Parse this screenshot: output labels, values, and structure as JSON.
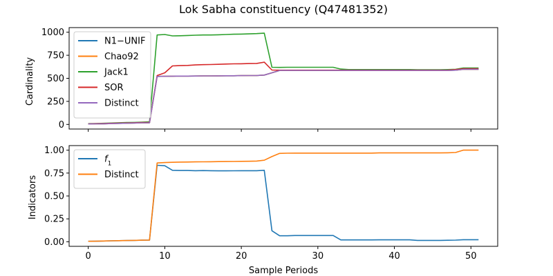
{
  "chart_data": [
    {
      "type": "line",
      "title": "Lok Sabha constituency (Q47481352)",
      "xlabel": "",
      "ylabel": "Cardinality",
      "xlim": [
        -2.5,
        53.5
      ],
      "ylim": [
        -50,
        1050
      ],
      "xticks": [
        0,
        10,
        20,
        30,
        40,
        50
      ],
      "yticks": [
        0,
        250,
        500,
        750,
        1000
      ],
      "ytick_labels": [
        "0",
        "250",
        "500",
        "750",
        "1000"
      ],
      "show_xtick_labels": false,
      "legend": "top-left",
      "series": [
        {
          "name": "N1−UNIF",
          "color": "#1f77b4",
          "x": [
            0,
            1,
            2,
            3,
            4,
            5,
            6,
            7,
            8,
            9,
            10,
            11,
            12,
            13,
            14,
            15,
            16,
            17,
            18,
            19,
            20,
            21,
            22,
            23,
            24,
            25,
            26,
            27,
            28,
            29,
            30,
            31,
            32,
            33,
            34,
            35,
            36,
            37,
            38,
            39,
            40,
            41,
            42,
            43,
            44,
            45,
            46,
            47,
            48,
            49,
            50,
            51
          ],
          "y": [
            5,
            6,
            7,
            9,
            11,
            13,
            15,
            17,
            18,
            520,
            522,
            523,
            524,
            524,
            525,
            526,
            526,
            527,
            528,
            528,
            529,
            530,
            531,
            535,
            560,
            585,
            585,
            585,
            585,
            585,
            585,
            585,
            585,
            585,
            585,
            585,
            585,
            585,
            585,
            585,
            585,
            585,
            585,
            585,
            585,
            585,
            585,
            585,
            588,
            598,
            598,
            598
          ]
        },
        {
          "name": "Chao92",
          "color": "#ff7f0e",
          "x": [
            0,
            1,
            2,
            3,
            4,
            5,
            6,
            7,
            8,
            9,
            10,
            11,
            12,
            13,
            14,
            15,
            16,
            17,
            18,
            19,
            20,
            21,
            22,
            23,
            24,
            25,
            26,
            27,
            28,
            29,
            30,
            31,
            32,
            33,
            34,
            35,
            36,
            37,
            38,
            39,
            40,
            41,
            42,
            43,
            44,
            45,
            46,
            47,
            48,
            49,
            50,
            51
          ],
          "y": [
            5,
            6,
            7,
            9,
            11,
            13,
            15,
            17,
            18,
            520,
            522,
            523,
            524,
            524,
            525,
            526,
            526,
            527,
            528,
            528,
            529,
            530,
            531,
            535,
            560,
            585,
            585,
            585,
            585,
            585,
            585,
            585,
            585,
            585,
            585,
            585,
            585,
            585,
            585,
            585,
            585,
            585,
            585,
            585,
            585,
            585,
            585,
            585,
            588,
            598,
            598,
            598
          ]
        },
        {
          "name": "Jack1",
          "color": "#2ca02c",
          "x": [
            0,
            1,
            2,
            3,
            4,
            5,
            6,
            7,
            8,
            9,
            10,
            11,
            12,
            13,
            14,
            15,
            16,
            17,
            18,
            19,
            20,
            21,
            22,
            23,
            24,
            25,
            26,
            27,
            28,
            29,
            30,
            31,
            32,
            33,
            34,
            35,
            36,
            37,
            38,
            39,
            40,
            41,
            42,
            43,
            44,
            45,
            46,
            47,
            48,
            49,
            50,
            51
          ],
          "y": [
            8,
            10,
            12,
            15,
            18,
            20,
            22,
            25,
            28,
            970,
            975,
            960,
            962,
            965,
            968,
            970,
            970,
            972,
            975,
            978,
            980,
            982,
            985,
            990,
            620,
            618,
            620,
            620,
            620,
            620,
            620,
            620,
            620,
            600,
            595,
            595,
            595,
            595,
            595,
            595,
            595,
            595,
            595,
            593,
            593,
            593,
            593,
            595,
            598,
            612,
            612,
            612
          ]
        },
        {
          "name": "SOR",
          "color": "#d62728",
          "x": [
            0,
            1,
            2,
            3,
            4,
            5,
            6,
            7,
            8,
            9,
            10,
            11,
            12,
            13,
            14,
            15,
            16,
            17,
            18,
            19,
            20,
            21,
            22,
            23,
            24,
            25,
            26,
            27,
            28,
            29,
            30,
            31,
            32,
            33,
            34,
            35,
            36,
            37,
            38,
            39,
            40,
            41,
            42,
            43,
            44,
            45,
            46,
            47,
            48,
            49,
            50,
            51
          ],
          "y": [
            6,
            8,
            10,
            12,
            14,
            16,
            18,
            20,
            22,
            530,
            560,
            635,
            638,
            640,
            645,
            648,
            650,
            652,
            655,
            657,
            658,
            660,
            662,
            675,
            590,
            588,
            588,
            588,
            588,
            588,
            588,
            588,
            588,
            588,
            588,
            588,
            588,
            588,
            588,
            588,
            588,
            588,
            588,
            588,
            588,
            588,
            588,
            590,
            595,
            605,
            605,
            605
          ]
        },
        {
          "name": "Distinct",
          "color": "#9467bd",
          "x": [
            0,
            1,
            2,
            3,
            4,
            5,
            6,
            7,
            8,
            9,
            10,
            11,
            12,
            13,
            14,
            15,
            16,
            17,
            18,
            19,
            20,
            21,
            22,
            23,
            24,
            25,
            26,
            27,
            28,
            29,
            30,
            31,
            32,
            33,
            34,
            35,
            36,
            37,
            38,
            39,
            40,
            41,
            42,
            43,
            44,
            45,
            46,
            47,
            48,
            49,
            50,
            51
          ],
          "y": [
            5,
            6,
            7,
            9,
            11,
            13,
            15,
            17,
            18,
            520,
            522,
            523,
            524,
            524,
            525,
            526,
            526,
            527,
            528,
            528,
            529,
            530,
            531,
            535,
            560,
            585,
            585,
            585,
            585,
            585,
            585,
            585,
            585,
            585,
            585,
            585,
            585,
            585,
            585,
            585,
            585,
            585,
            585,
            585,
            585,
            585,
            585,
            585,
            588,
            598,
            598,
            598
          ]
        }
      ]
    },
    {
      "type": "line",
      "title": "",
      "xlabel": "Sample Periods",
      "ylabel": "Indicators",
      "xlim": [
        -2.5,
        53.5
      ],
      "ylim": [
        -0.05,
        1.05
      ],
      "xticks": [
        0,
        10,
        20,
        30,
        40,
        50
      ],
      "xtick_labels": [
        "0",
        "10",
        "20",
        "30",
        "40",
        "50"
      ],
      "yticks": [
        0,
        0.25,
        0.5,
        0.75,
        1.0
      ],
      "ytick_labels": [
        "0.00",
        "0.25",
        "0.50",
        "0.75",
        "1.00"
      ],
      "show_xtick_labels": true,
      "legend": "top-left",
      "series": [
        {
          "name": "f",
          "name_subscript": "1",
          "color": "#1f77b4",
          "x": [
            0,
            1,
            2,
            3,
            4,
            5,
            6,
            7,
            8,
            9,
            10,
            11,
            12,
            13,
            14,
            15,
            16,
            17,
            18,
            19,
            20,
            21,
            22,
            23,
            24,
            25,
            26,
            27,
            28,
            29,
            30,
            31,
            32,
            33,
            34,
            35,
            36,
            37,
            38,
            39,
            40,
            41,
            42,
            43,
            44,
            45,
            46,
            47,
            48,
            49,
            50,
            51
          ],
          "y": [
            0.005,
            0.006,
            0.008,
            0.01,
            0.012,
            0.013,
            0.015,
            0.017,
            0.018,
            0.835,
            0.83,
            0.78,
            0.778,
            0.778,
            0.776,
            0.777,
            0.776,
            0.774,
            0.774,
            0.775,
            0.776,
            0.776,
            0.776,
            0.78,
            0.12,
            0.065,
            0.065,
            0.068,
            0.068,
            0.068,
            0.068,
            0.068,
            0.068,
            0.02,
            0.02,
            0.02,
            0.02,
            0.02,
            0.021,
            0.021,
            0.021,
            0.021,
            0.021,
            0.015,
            0.015,
            0.015,
            0.015,
            0.016,
            0.018,
            0.022,
            0.022,
            0.022
          ]
        },
        {
          "name": "Distinct",
          "color": "#ff7f0e",
          "x": [
            0,
            1,
            2,
            3,
            4,
            5,
            6,
            7,
            8,
            9,
            10,
            11,
            12,
            13,
            14,
            15,
            16,
            17,
            18,
            19,
            20,
            21,
            22,
            23,
            24,
            25,
            26,
            27,
            28,
            29,
            30,
            31,
            32,
            33,
            34,
            35,
            36,
            37,
            38,
            39,
            40,
            41,
            42,
            43,
            44,
            45,
            46,
            47,
            48,
            49,
            50,
            51
          ],
          "y": [
            0.005,
            0.006,
            0.008,
            0.01,
            0.012,
            0.013,
            0.015,
            0.017,
            0.018,
            0.86,
            0.865,
            0.868,
            0.87,
            0.871,
            0.872,
            0.873,
            0.874,
            0.875,
            0.876,
            0.877,
            0.878,
            0.879,
            0.881,
            0.89,
            0.93,
            0.965,
            0.967,
            0.968,
            0.968,
            0.968,
            0.968,
            0.968,
            0.968,
            0.968,
            0.968,
            0.968,
            0.968,
            0.968,
            0.97,
            0.97,
            0.97,
            0.97,
            0.97,
            0.97,
            0.97,
            0.97,
            0.97,
            0.972,
            0.975,
            1.0,
            1.0,
            1.0
          ]
        }
      ]
    }
  ]
}
